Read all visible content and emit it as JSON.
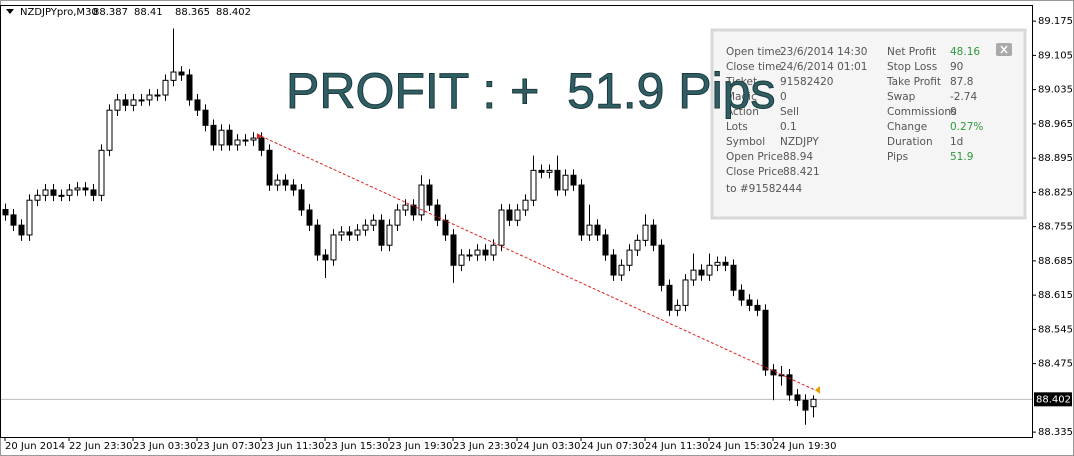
{
  "chart_data": {
    "type": "candlestick",
    "symbol": "NZDJPYpro,M30",
    "annotation": "PROFIT : +  51.9 Pips",
    "ylim": [
      88.325,
      89.208
    ],
    "yticks": [
      89.175,
      89.105,
      89.035,
      88.965,
      88.895,
      88.825,
      88.755,
      88.685,
      88.615,
      88.545,
      88.475,
      88.335
    ],
    "categories": [
      "20 Jun 2014",
      null,
      null,
      null,
      null,
      null,
      null,
      null,
      "22 Jun 23:30",
      null,
      null,
      null,
      null,
      null,
      null,
      null,
      "23 Jun 03:30",
      null,
      null,
      null,
      null,
      null,
      null,
      null,
      "23 Jun 07:30",
      null,
      null,
      null,
      null,
      null,
      null,
      null,
      "23 Jun 11:30",
      null,
      null,
      null,
      null,
      null,
      null,
      null,
      "23 Jun 15:30",
      null,
      null,
      null,
      null,
      null,
      null,
      null,
      "23 Jun 19:30",
      null,
      null,
      null,
      null,
      null,
      null,
      null,
      "23 Jun 23:30",
      null,
      null,
      null,
      null,
      null,
      null,
      null,
      "24 Jun 03:30",
      null,
      null,
      null,
      null,
      null,
      null,
      null,
      "24 Jun 07:30",
      null,
      null,
      null,
      null,
      null,
      null,
      null,
      "24 Jun 11:30",
      null,
      null,
      null,
      null,
      null,
      null,
      null,
      "24 Jun 15:30",
      null,
      null,
      null,
      null,
      null,
      null,
      null,
      "24 Jun 19:30",
      null,
      null,
      null,
      null,
      null
    ],
    "ohlc": [
      [
        88.79,
        88.802,
        88.767,
        88.779
      ],
      [
        88.779,
        88.791,
        88.746,
        88.758
      ],
      [
        88.758,
        88.77,
        88.726,
        88.738
      ],
      [
        88.738,
        88.821,
        88.726,
        88.809
      ],
      [
        88.809,
        88.831,
        88.797,
        88.819
      ],
      [
        88.819,
        88.842,
        88.807,
        88.83
      ],
      [
        88.83,
        88.842,
        88.807,
        88.819
      ],
      [
        88.819,
        88.831,
        88.807,
        88.819
      ],
      [
        88.819,
        88.842,
        88.807,
        88.83
      ],
      [
        88.83,
        88.846,
        88.818,
        88.834
      ],
      [
        88.834,
        88.846,
        88.818,
        88.83
      ],
      [
        88.83,
        88.842,
        88.807,
        88.819
      ],
      [
        88.819,
        88.923,
        88.807,
        88.911
      ],
      [
        88.911,
        89.005,
        88.899,
        88.993
      ],
      [
        88.993,
        89.026,
        88.981,
        89.014
      ],
      [
        89.014,
        89.026,
        88.991,
        89.003
      ],
      [
        89.003,
        89.026,
        88.991,
        89.014
      ],
      [
        89.014,
        89.026,
        89.002,
        89.014
      ],
      [
        89.014,
        89.036,
        89.002,
        89.024
      ],
      [
        89.024,
        89.036,
        89.012,
        89.024
      ],
      [
        89.024,
        89.066,
        89.012,
        89.054
      ],
      [
        89.054,
        89.16,
        89.042,
        89.071
      ],
      [
        89.071,
        89.083,
        89.053,
        89.065
      ],
      [
        89.065,
        89.077,
        89.002,
        89.014
      ],
      [
        89.014,
        89.026,
        88.981,
        88.993
      ],
      [
        88.993,
        89.005,
        88.95,
        88.962
      ],
      [
        88.962,
        88.974,
        88.91,
        88.922
      ],
      [
        88.922,
        88.964,
        88.91,
        88.952
      ],
      [
        88.952,
        88.964,
        88.91,
        88.922
      ],
      [
        88.922,
        88.944,
        88.91,
        88.932
      ],
      [
        88.932,
        88.944,
        88.92,
        88.932
      ],
      [
        88.932,
        88.948,
        88.92,
        88.936
      ],
      [
        88.936,
        88.948,
        88.899,
        88.911
      ],
      [
        88.911,
        88.923,
        88.828,
        88.84
      ],
      [
        88.84,
        88.862,
        88.828,
        88.85
      ],
      [
        88.85,
        88.862,
        88.828,
        88.84
      ],
      [
        88.84,
        88.852,
        88.818,
        88.83
      ],
      [
        88.83,
        88.842,
        88.777,
        88.789
      ],
      [
        88.789,
        88.801,
        88.746,
        88.758
      ],
      [
        88.758,
        88.77,
        88.685,
        88.697
      ],
      [
        88.697,
        88.709,
        88.65,
        88.687
      ],
      [
        88.687,
        88.75,
        88.675,
        88.738
      ],
      [
        88.738,
        88.756,
        88.726,
        88.744
      ],
      [
        88.744,
        88.756,
        88.726,
        88.738
      ],
      [
        88.738,
        88.76,
        88.726,
        88.748
      ],
      [
        88.748,
        88.77,
        88.736,
        88.758
      ],
      [
        88.758,
        88.78,
        88.746,
        88.768
      ],
      [
        88.768,
        88.78,
        88.705,
        88.717
      ],
      [
        88.717,
        88.77,
        88.705,
        88.758
      ],
      [
        88.758,
        88.801,
        88.746,
        88.789
      ],
      [
        88.789,
        88.811,
        88.777,
        88.799
      ],
      [
        88.799,
        88.811,
        88.767,
        88.779
      ],
      [
        88.779,
        88.86,
        88.767,
        88.84
      ],
      [
        88.84,
        88.852,
        88.787,
        88.799
      ],
      [
        88.799,
        88.811,
        88.756,
        88.768
      ],
      [
        88.768,
        88.78,
        88.726,
        88.738
      ],
      [
        88.738,
        88.75,
        88.64,
        88.676
      ],
      [
        88.676,
        88.709,
        88.664,
        88.697
      ],
      [
        88.697,
        88.709,
        88.685,
        88.697
      ],
      [
        88.697,
        88.719,
        88.685,
        88.707
      ],
      [
        88.707,
        88.719,
        88.685,
        88.697
      ],
      [
        88.697,
        88.729,
        88.685,
        88.717
      ],
      [
        88.717,
        88.801,
        88.705,
        88.789
      ],
      [
        88.789,
        88.801,
        88.756,
        88.768
      ],
      [
        88.768,
        88.801,
        88.756,
        88.789
      ],
      [
        88.789,
        88.821,
        88.777,
        88.809
      ],
      [
        88.809,
        88.9,
        88.797,
        88.87
      ],
      [
        88.87,
        88.882,
        88.854,
        88.866
      ],
      [
        88.866,
        88.882,
        88.854,
        88.87
      ],
      [
        88.87,
        88.9,
        88.818,
        88.83
      ],
      [
        88.83,
        88.872,
        88.818,
        88.86
      ],
      [
        88.86,
        88.872,
        88.828,
        88.84
      ],
      [
        88.84,
        88.852,
        88.726,
        88.738
      ],
      [
        88.738,
        88.8,
        88.726,
        88.758
      ],
      [
        88.758,
        88.77,
        88.726,
        88.738
      ],
      [
        88.738,
        88.75,
        88.685,
        88.697
      ],
      [
        88.697,
        88.709,
        88.644,
        88.656
      ],
      [
        88.656,
        88.688,
        88.644,
        88.676
      ],
      [
        88.676,
        88.719,
        88.664,
        88.707
      ],
      [
        88.707,
        88.739,
        88.695,
        88.727
      ],
      [
        88.727,
        88.78,
        88.715,
        88.758
      ],
      [
        88.758,
        88.77,
        88.705,
        88.717
      ],
      [
        88.717,
        88.729,
        88.623,
        88.635
      ],
      [
        88.635,
        88.647,
        88.572,
        88.584
      ],
      [
        88.584,
        88.606,
        88.572,
        88.594
      ],
      [
        88.594,
        88.658,
        88.582,
        88.646
      ],
      [
        88.646,
        88.7,
        88.634,
        88.666
      ],
      [
        88.666,
        88.678,
        88.644,
        88.656
      ],
      [
        88.656,
        88.7,
        88.644,
        88.676
      ],
      [
        88.676,
        88.694,
        88.664,
        88.682
      ],
      [
        88.682,
        88.694,
        88.664,
        88.676
      ],
      [
        88.676,
        88.688,
        88.613,
        88.625
      ],
      [
        88.625,
        88.637,
        88.593,
        88.605
      ],
      [
        88.605,
        88.617,
        88.582,
        88.594
      ],
      [
        88.594,
        88.606,
        88.572,
        88.584
      ],
      [
        88.584,
        88.596,
        88.45,
        88.462
      ],
      [
        88.462,
        88.474,
        88.4,
        88.452
      ],
      [
        88.452,
        88.47,
        88.43,
        88.452
      ],
      [
        88.452,
        88.464,
        88.399,
        88.411
      ],
      [
        88.411,
        88.423,
        88.388,
        88.4
      ],
      [
        88.4,
        88.412,
        88.35,
        88.38
      ],
      [
        88.387,
        88.41,
        88.365,
        88.402
      ]
    ],
    "panel": {
      "left": [
        [
          "Open time",
          "23/6/2014 14:30"
        ],
        [
          "Close time",
          "24/6/2014 01:01"
        ],
        [
          "Ticket",
          91582420
        ],
        [
          "Magic",
          0
        ],
        [
          "Action",
          "Sell"
        ],
        [
          "Lots",
          0.1
        ],
        [
          "Symbol",
          "NZDJPY"
        ],
        [
          "Open Price",
          88.94
        ],
        [
          "Close Price",
          88.421
        ]
      ],
      "right": [
        {
          "label": "Net Profit",
          "value": 48.16,
          "color": "#2f9a3a"
        },
        {
          "label": "Stop Loss",
          "value": 90
        },
        {
          "label": "Take Profit",
          "value": 87.8
        },
        {
          "label": "Swap",
          "value": -2.74
        },
        {
          "label": "Commissions",
          "value": 0
        },
        {
          "label": "Change",
          "value": "0.27%",
          "color": "#2f9a3a"
        },
        {
          "label": "Duration",
          "value": "1d"
        },
        {
          "label": "Pips",
          "value": 51.9,
          "color": "#2f9a3a"
        }
      ],
      "footer": "to #91582444"
    }
  }
}
